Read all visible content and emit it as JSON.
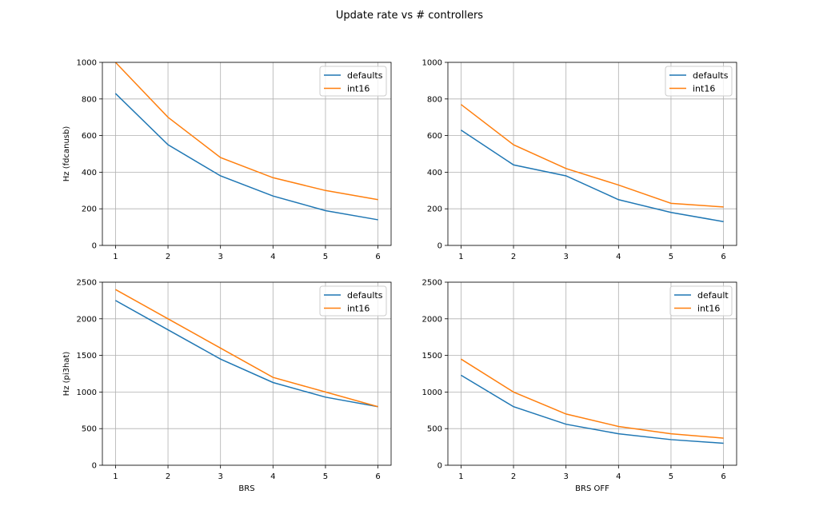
{
  "figure_title": "Update rate vs # controllers",
  "colors": {
    "series0": "#1f77b4",
    "series1": "#ff7f0e"
  },
  "chart_data": [
    {
      "type": "line",
      "title": "",
      "xlabel": "",
      "ylabel": "Hz (fdcanusb)",
      "x": [
        1,
        2,
        3,
        4,
        5,
        6
      ],
      "xlim": [
        0.75,
        6.25
      ],
      "ylim": [
        0,
        1000
      ],
      "yticks": [
        0,
        200,
        400,
        600,
        800,
        1000
      ],
      "xticks": [
        1,
        2,
        3,
        4,
        5,
        6
      ],
      "grid": true,
      "legend": "top-right",
      "series": [
        {
          "name": "defaults",
          "values": [
            830,
            550,
            380,
            270,
            190,
            140
          ]
        },
        {
          "name": "int16",
          "values": [
            1000,
            700,
            480,
            370,
            300,
            250
          ]
        }
      ]
    },
    {
      "type": "line",
      "title": "",
      "xlabel": "",
      "ylabel": "",
      "x": [
        1,
        2,
        3,
        4,
        5,
        6
      ],
      "xlim": [
        0.75,
        6.25
      ],
      "ylim": [
        0,
        1000
      ],
      "yticks": [
        0,
        200,
        400,
        600,
        800,
        1000
      ],
      "xticks": [
        1,
        2,
        3,
        4,
        5,
        6
      ],
      "grid": true,
      "legend": "top-right",
      "series": [
        {
          "name": "defaults",
          "values": [
            630,
            440,
            380,
            250,
            180,
            130
          ]
        },
        {
          "name": "int16",
          "values": [
            770,
            550,
            420,
            330,
            230,
            210
          ]
        }
      ]
    },
    {
      "type": "line",
      "title": "",
      "xlabel": "BRS",
      "ylabel": "Hz (pi3hat)",
      "x": [
        1,
        2,
        3,
        4,
        5,
        6
      ],
      "xlim": [
        0.75,
        6.25
      ],
      "ylim": [
        0,
        2500
      ],
      "yticks": [
        0,
        500,
        1000,
        1500,
        2000,
        2500
      ],
      "xticks": [
        1,
        2,
        3,
        4,
        5,
        6
      ],
      "grid": true,
      "legend": "top-right",
      "series": [
        {
          "name": "defaults",
          "values": [
            2250,
            1850,
            1450,
            1130,
            930,
            800
          ]
        },
        {
          "name": "int16",
          "values": [
            2400,
            2000,
            1600,
            1200,
            1000,
            800
          ]
        }
      ]
    },
    {
      "type": "line",
      "title": "",
      "xlabel": "BRS OFF",
      "ylabel": "",
      "x": [
        1,
        2,
        3,
        4,
        5,
        6
      ],
      "xlim": [
        0.75,
        6.25
      ],
      "ylim": [
        0,
        2500
      ],
      "yticks": [
        0,
        500,
        1000,
        1500,
        2000,
        2500
      ],
      "xticks": [
        1,
        2,
        3,
        4,
        5,
        6
      ],
      "grid": true,
      "legend": "top-right",
      "series": [
        {
          "name": "default",
          "values": [
            1230,
            800,
            560,
            430,
            350,
            300
          ]
        },
        {
          "name": "int16",
          "values": [
            1450,
            1000,
            700,
            530,
            430,
            370
          ]
        }
      ]
    }
  ]
}
